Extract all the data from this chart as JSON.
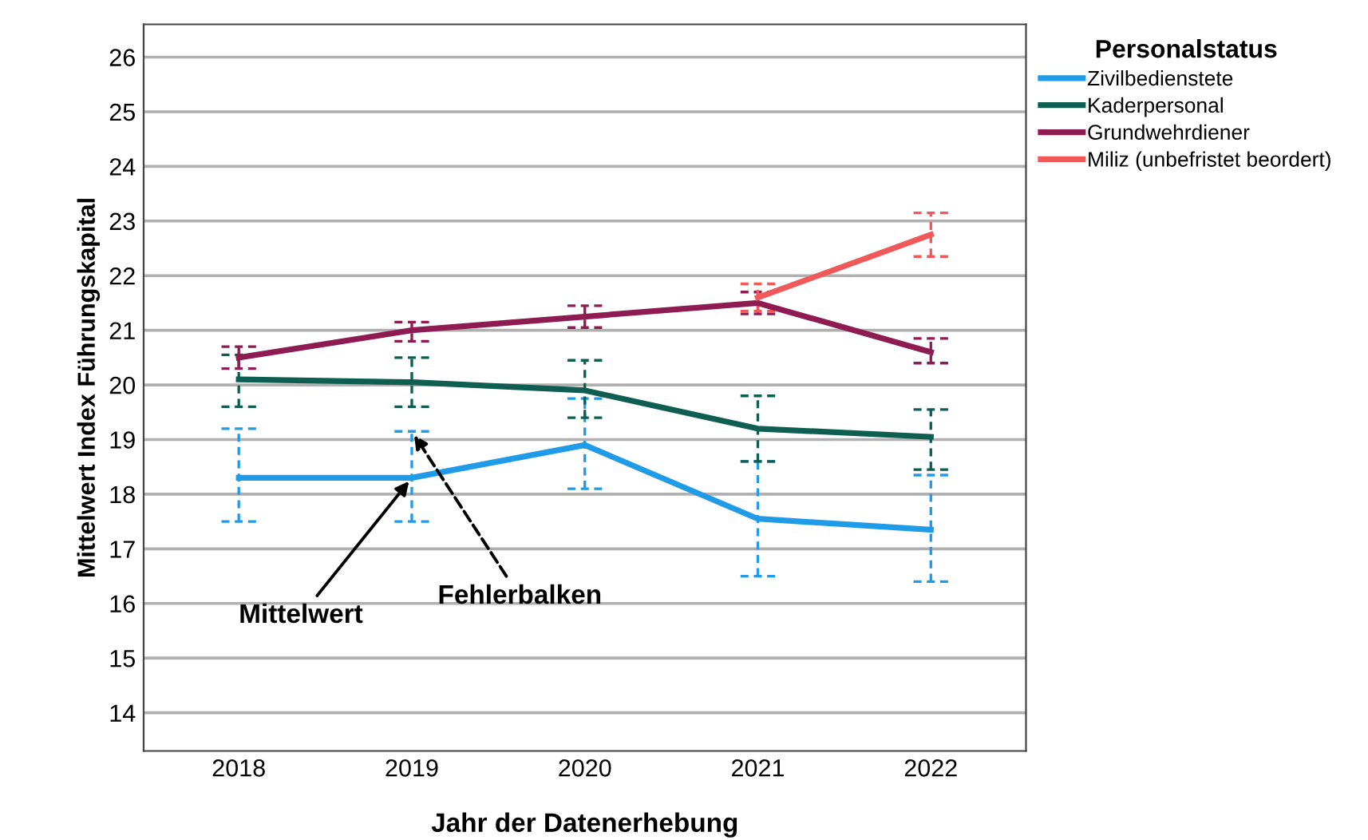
{
  "chart_data": {
    "type": "line",
    "xlabel": "Jahr der Datenerhebung",
    "ylabel": "Mittelwert Index Führungskapital",
    "legend_title": "Personalstatus",
    "legend": "right",
    "grid": "y",
    "categories": [
      "2018",
      "2019",
      "2020",
      "2021",
      "2022"
    ],
    "ylim": [
      13.3,
      26.6
    ],
    "yticks": [
      14,
      15,
      16,
      17,
      18,
      19,
      20,
      21,
      22,
      23,
      24,
      25,
      26
    ],
    "series": [
      {
        "name": "Zivilbedienstete",
        "color": "#1f9be8",
        "values": [
          18.3,
          18.3,
          18.9,
          17.55,
          17.35
        ],
        "errors": [
          [
            17.5,
            19.2
          ],
          [
            17.5,
            19.15
          ],
          [
            18.1,
            19.75
          ],
          [
            16.5,
            18.6
          ],
          [
            16.4,
            18.35
          ]
        ]
      },
      {
        "name": "Kaderpersonal",
        "color": "#0f5e52",
        "values": [
          20.1,
          20.05,
          19.9,
          19.2,
          19.05
        ],
        "errors": [
          [
            19.6,
            20.55
          ],
          [
            19.6,
            20.5
          ],
          [
            19.4,
            20.45
          ],
          [
            18.6,
            19.8
          ],
          [
            18.45,
            19.55
          ]
        ]
      },
      {
        "name": "Grundwehrdiener",
        "color": "#8e1b52",
        "values": [
          20.5,
          21.0,
          21.25,
          21.5,
          20.6
        ],
        "errors": [
          [
            20.3,
            20.7
          ],
          [
            20.8,
            21.15
          ],
          [
            21.05,
            21.45
          ],
          [
            21.3,
            21.7
          ],
          [
            20.4,
            20.85
          ]
        ]
      },
      {
        "name": "Miliz (unbefristet beordert)",
        "color": "#f0585a",
        "values": [
          null,
          null,
          null,
          21.6,
          22.75
        ],
        "errors": [
          null,
          null,
          null,
          [
            21.35,
            21.85
          ],
          [
            22.35,
            23.15
          ]
        ]
      }
    ],
    "annotations": [
      {
        "text": "Mittelwert",
        "x": "2019",
        "y": 18.3
      },
      {
        "text": "Fehlerbalken",
        "x": "2019",
        "y": 19.15
      }
    ]
  }
}
